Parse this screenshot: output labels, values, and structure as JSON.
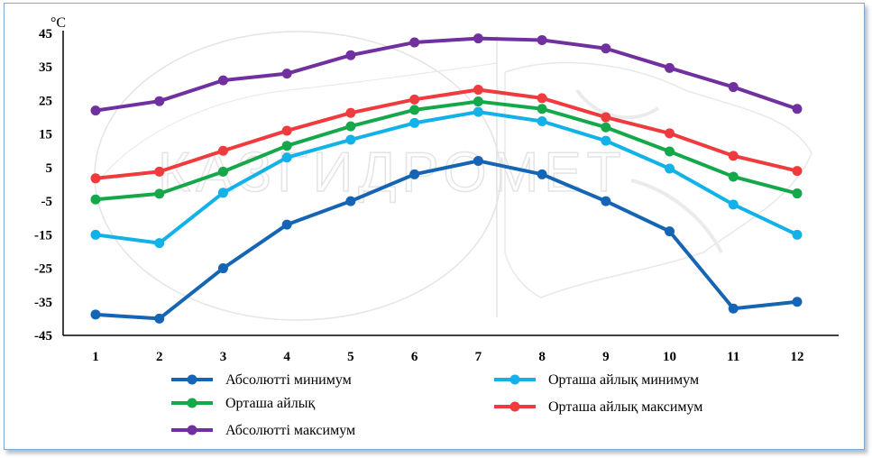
{
  "chart_data": {
    "type": "line",
    "unit_label": "°C",
    "ylim": [
      -45,
      45
    ],
    "yticks": [
      45,
      35,
      25,
      15,
      5,
      -5,
      -15,
      -25,
      -35,
      -45
    ],
    "categories": [
      "1",
      "2",
      "3",
      "4",
      "5",
      "6",
      "7",
      "8",
      "9",
      "10",
      "11",
      "12"
    ],
    "grid": false,
    "watermark": "КАЗГИДРОМЕТ",
    "series": [
      {
        "name": "Абсолютті минимум",
        "color": "#1565b4",
        "values": [
          -38.8,
          -40.0,
          -25.0,
          -12.0,
          -5.0,
          3.0,
          7.0,
          3.0,
          -5.0,
          -14.0,
          -37.0,
          -35.0
        ]
      },
      {
        "name": "Орташа айлық минимум",
        "color": "#12b2e8",
        "values": [
          -15.0,
          -17.5,
          -2.5,
          8.0,
          13.3,
          18.3,
          21.6,
          18.8,
          13.0,
          4.7,
          -6.0,
          -15.0
        ]
      },
      {
        "name": "Орташа айлық",
        "color": "#15a84a",
        "values": [
          -4.5,
          -2.8,
          3.8,
          11.5,
          17.3,
          22.2,
          24.7,
          22.5,
          17.0,
          9.8,
          2.3,
          -2.7
        ]
      },
      {
        "name": "Орташа айлық максимум",
        "color": "#ef3b3d",
        "values": [
          1.8,
          3.8,
          10.0,
          16.0,
          21.3,
          25.3,
          28.2,
          25.7,
          20.0,
          15.2,
          8.5,
          4.0
        ]
      },
      {
        "name": "Абсолютті максимум",
        "color": "#7030a0",
        "values": [
          22.0,
          24.8,
          31.0,
          33.0,
          38.5,
          42.3,
          43.5,
          43.0,
          40.5,
          34.7,
          29.0,
          22.5
        ]
      }
    ]
  }
}
